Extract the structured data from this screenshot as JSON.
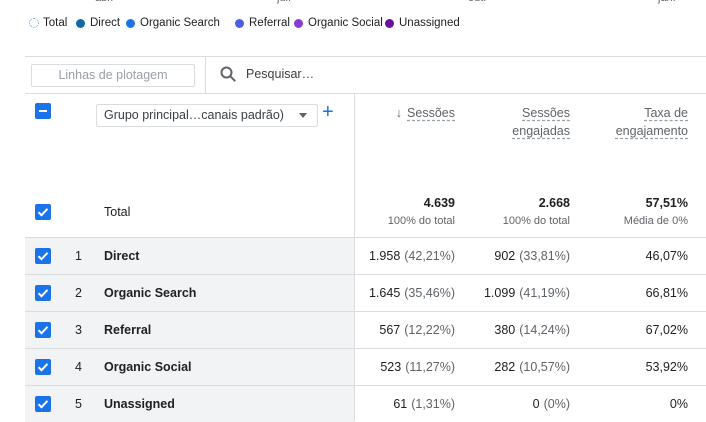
{
  "chart_axis_labels": [
    "abr.",
    "jul.",
    "out.",
    "jan."
  ],
  "legend": [
    {
      "label": "Total",
      "color": "#5b9bd5"
    },
    {
      "label": "Direct",
      "color": "#0f6aa8"
    },
    {
      "label": "Organic Search",
      "color": "#1a73e8"
    },
    {
      "label": "Referral",
      "color": "#4e5ee4"
    },
    {
      "label": "Organic Social",
      "color": "#8a3ad6"
    },
    {
      "label": "Unassigned",
      "color": "#6a0f9e"
    }
  ],
  "toolbar": {
    "plot_rows": "Linhas de plotagem",
    "search": "Pesquisar…"
  },
  "table": {
    "dimension": "Grupo principal…canais padrão)",
    "columns": [
      "Sessões",
      "Sessões engajadas",
      "Taxa de engajamento"
    ],
    "total": {
      "label": "Total",
      "values": [
        "4.639",
        "2.668",
        "57,51%"
      ],
      "notes": [
        "100% do total",
        "100% do total",
        "Média de 0%"
      ]
    },
    "rows": [
      {
        "rank": "1",
        "name": "Direct",
        "sessions": "1.958",
        "sessions_share": "(42,21%)",
        "engaged": "902",
        "engaged_share": "(33,81%)",
        "rate": "46,07%"
      },
      {
        "rank": "2",
        "name": "Organic Search",
        "sessions": "1.645",
        "sessions_share": "(35,46%)",
        "engaged": "1.099",
        "engaged_share": "(41,19%)",
        "rate": "66,81%"
      },
      {
        "rank": "3",
        "name": "Referral",
        "sessions": "567",
        "sessions_share": "(12,22%)",
        "engaged": "380",
        "engaged_share": "(14,24%)",
        "rate": "67,02%"
      },
      {
        "rank": "4",
        "name": "Organic Social",
        "sessions": "523",
        "sessions_share": "(11,27%)",
        "engaged": "282",
        "engaged_share": "(10,57%)",
        "rate": "53,92%"
      },
      {
        "rank": "5",
        "name": "Unassigned",
        "sessions": "61",
        "sessions_share": "(1,31%)",
        "engaged": "0",
        "engaged_share": "(0%)",
        "rate": "0%"
      }
    ]
  }
}
